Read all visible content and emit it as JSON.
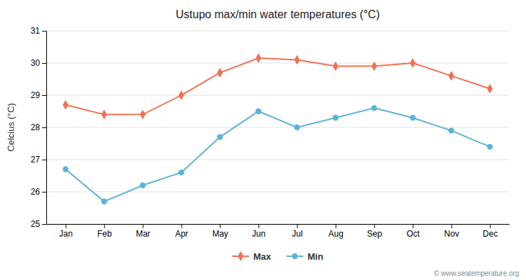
{
  "chart_data": {
    "type": "line",
    "title": "Ustupo max/min water temperatures (°C)",
    "ylabel": "Celcius (°C)",
    "categories": [
      "Jan",
      "Feb",
      "Mar",
      "Apr",
      "May",
      "Jun",
      "Jul",
      "Aug",
      "Sep",
      "Oct",
      "Nov",
      "Dec"
    ],
    "series": [
      {
        "name": "Max",
        "color": "#f07050",
        "marker": "diamond",
        "values": [
          28.7,
          28.4,
          28.4,
          29.0,
          29.7,
          30.15,
          30.1,
          29.9,
          29.9,
          30.0,
          29.6,
          29.2
        ]
      },
      {
        "name": "Min",
        "color": "#5ab4d6",
        "marker": "circle",
        "values": [
          26.7,
          25.7,
          26.2,
          26.6,
          27.7,
          28.5,
          28.0,
          28.3,
          28.6,
          28.3,
          27.9,
          27.4
        ]
      }
    ],
    "ylim": [
      25,
      31
    ],
    "yticks": [
      25,
      26,
      27,
      28,
      29,
      30,
      31
    ],
    "grid": true,
    "legend": "bottom",
    "annotations": [
      "© www.seatemperature.org"
    ]
  }
}
